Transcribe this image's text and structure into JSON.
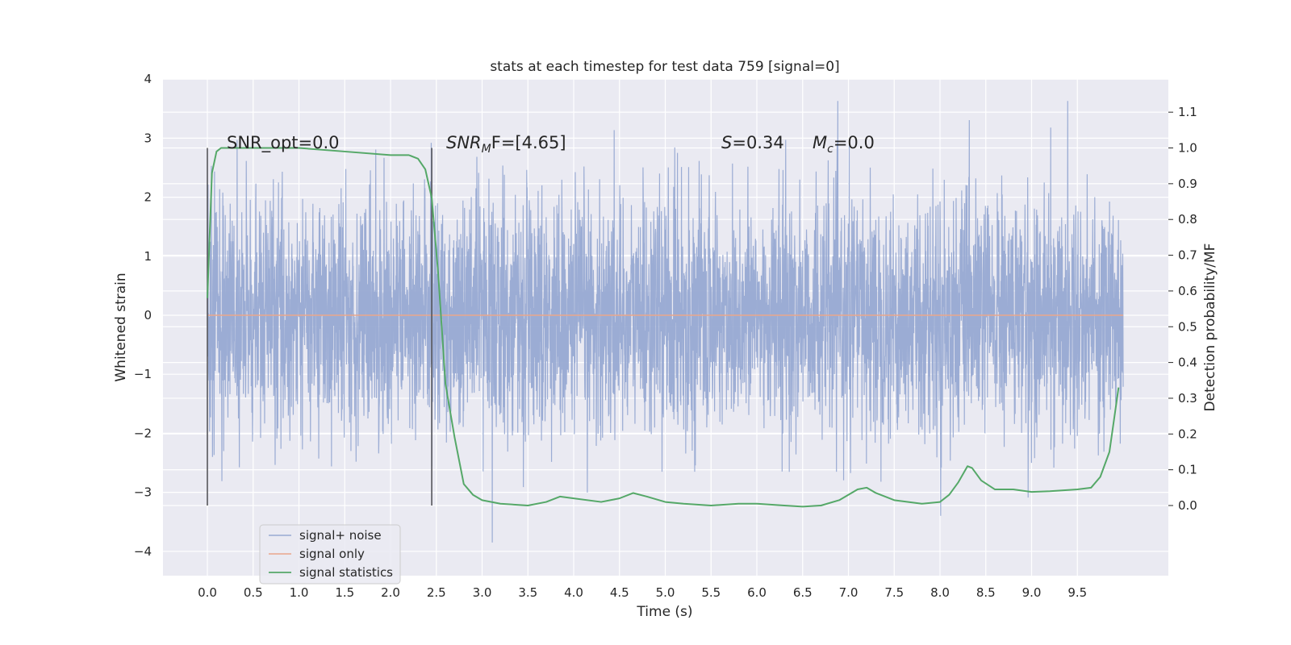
{
  "chart_data": {
    "type": "line",
    "title": "stats at each timestep for test data 759 [signal=0]",
    "xlabel": "Time (s)",
    "ylabel": "Whitened strain",
    "ylabel_right": "Detection probability/MF",
    "xlim": [
      -0.5,
      10.5
    ],
    "ylim": [
      -4.4,
      4.0
    ],
    "ylim_right": [
      -0.2,
      1.2
    ],
    "x_ticks": [
      0.0,
      0.5,
      1.0,
      1.5,
      2.0,
      2.5,
      3.0,
      3.5,
      4.0,
      4.5,
      5.0,
      5.5,
      6.0,
      6.5,
      7.0,
      7.5,
      8.0,
      8.5,
      9.0,
      9.5
    ],
    "x_tick_labels": [
      "0.0",
      "0.5",
      "1.0",
      "1.5",
      "2.0",
      "2.5",
      "3.0",
      "3.5",
      "4.0",
      "4.5",
      "5.0",
      "5.5",
      "6.0",
      "6.5",
      "7.0",
      "7.5",
      "8.0",
      "8.5",
      "9.0",
      "9.5"
    ],
    "y_ticks": [
      -4,
      -3,
      -2,
      -1,
      0,
      1,
      2,
      3,
      4
    ],
    "y_tick_labels": [
      "−4",
      "−3",
      "−2",
      "−1",
      "0",
      "1",
      "2",
      "3",
      "4"
    ],
    "y_right_ticks": [
      0.0,
      0.1,
      0.2,
      0.3,
      0.4,
      0.5,
      0.6,
      0.7,
      0.8,
      0.9,
      1.0,
      1.1
    ],
    "y_right_tick_labels": [
      "0.0",
      "0.1",
      "0.2",
      "0.3",
      "0.4",
      "0.5",
      "0.6",
      "0.7",
      "0.8",
      "0.9",
      "1.0",
      "1.1"
    ],
    "grid": true,
    "legend_position": "lower-left",
    "annotations": {
      "snr_opt": "SNR_opt=0.0",
      "snr_mf_base": "SNR",
      "snr_mf_sub": "M",
      "snr_mf_rest": "F=[4.65]",
      "s_var": "S",
      "s_value": "=0.34",
      "mc_var": "M",
      "mc_sub": "c",
      "mc_value": "=0.0"
    },
    "vlines": [
      0.0,
      2.45
    ],
    "series": [
      {
        "name": "signal+ noise",
        "axis": "left",
        "color": "#97a9d2",
        "x_range": [
          0.0,
          10.0
        ],
        "description_values": {
          "typical_amplitude": 1.0,
          "max": 3.63,
          "min": -3.85
        }
      },
      {
        "name": "signal only",
        "axis": "left",
        "color": "#e9a68b",
        "x": [
          0.0,
          10.0
        ],
        "y": [
          0.0,
          0.0
        ]
      },
      {
        "name": "signal statistics",
        "axis": "right",
        "color": "#55a868",
        "x": [
          0.0,
          0.05,
          0.1,
          0.15,
          0.25,
          0.5,
          1.0,
          1.5,
          2.0,
          2.2,
          2.3,
          2.38,
          2.45,
          2.52,
          2.6,
          2.7,
          2.8,
          2.9,
          3.0,
          3.2,
          3.5,
          3.7,
          3.85,
          4.0,
          4.3,
          4.5,
          4.65,
          4.8,
          5.0,
          5.2,
          5.5,
          5.8,
          6.0,
          6.3,
          6.5,
          6.7,
          6.9,
          7.1,
          7.2,
          7.3,
          7.5,
          7.8,
          8.0,
          8.1,
          8.2,
          8.3,
          8.35,
          8.45,
          8.6,
          8.8,
          9.0,
          9.2,
          9.5,
          9.65,
          9.75,
          9.85,
          9.95
        ],
        "y": [
          0.58,
          0.93,
          0.99,
          1.0,
          1.0,
          1.0,
          1.0,
          0.99,
          0.98,
          0.98,
          0.97,
          0.94,
          0.86,
          0.65,
          0.34,
          0.19,
          0.06,
          0.03,
          0.015,
          0.005,
          0.0,
          0.01,
          0.025,
          0.02,
          0.01,
          0.02,
          0.035,
          0.025,
          0.01,
          0.005,
          0.0,
          0.005,
          0.005,
          0.0,
          -0.003,
          0.0,
          0.015,
          0.045,
          0.05,
          0.035,
          0.015,
          0.005,
          0.01,
          0.03,
          0.065,
          0.11,
          0.105,
          0.07,
          0.045,
          0.045,
          0.038,
          0.04,
          0.045,
          0.05,
          0.08,
          0.15,
          0.33
        ]
      }
    ]
  }
}
